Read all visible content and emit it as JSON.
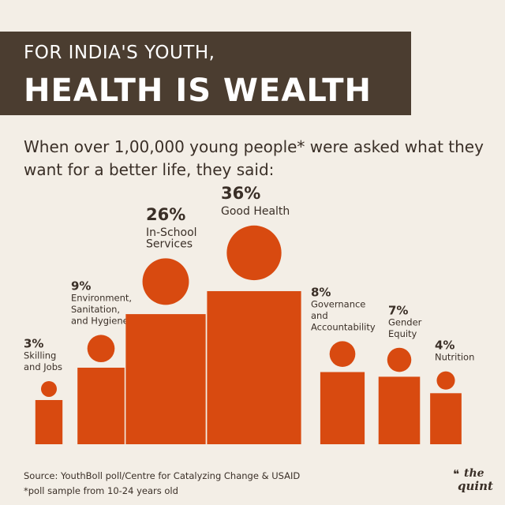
{
  "header": {
    "line1": "FOR INDIA'S YOUTH,",
    "line2": "HEALTH IS WEALTH"
  },
  "subtitle": "When over 1,00,000 young people* were asked what they want for a better life, they said:",
  "chart_data": {
    "type": "pictograph",
    "unit": "%",
    "categories": [
      "Skilling and Jobs",
      "Environment, Sanitation, and Hygiene",
      "In-School Services",
      "Good Health",
      "Governance and Accountability",
      "Gender Equity",
      "Nutrition"
    ],
    "label_lines": [
      [
        "Skilling",
        "and Jobs"
      ],
      [
        "Environment,",
        "Sanitation,",
        "and Hygiene"
      ],
      [
        "In-School",
        "Services"
      ],
      [
        "Good Health"
      ],
      [
        "Governance",
        "and",
        "Accountability"
      ],
      [
        "Gender",
        "Equity"
      ],
      [
        "Nutrition"
      ]
    ],
    "values": [
      3,
      9,
      26,
      36,
      8,
      7,
      4
    ],
    "color": "#d84a10"
  },
  "footer": {
    "source": "Source: YouthBoll poll/Centre for Catalyzing Change & USAID",
    "note": "*poll sample from 10-24 years old"
  },
  "logo": {
    "text1": "the",
    "text2": "quint"
  }
}
